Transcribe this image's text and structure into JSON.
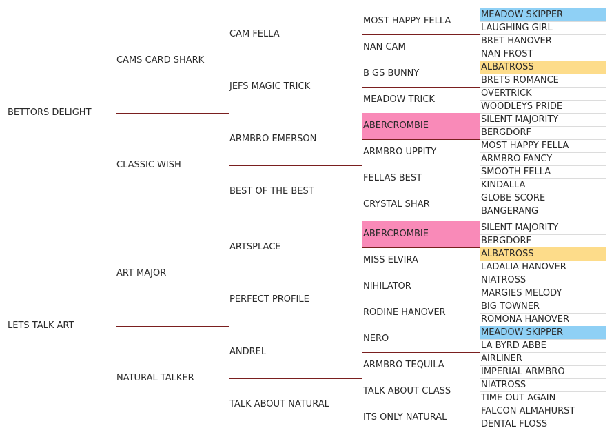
{
  "colors": {
    "line": "#7a1f1f",
    "grid": "#dcdcdc",
    "blue": "#8fd0f5",
    "pink": "#f98ab8",
    "orange": "#fddc8a"
  },
  "halves": [
    {
      "sire": "BETTORS DELIGHT",
      "g2": [
        "CAMS CARD SHARK",
        "CLASSIC WISH"
      ],
      "g3": [
        "CAM FELLA",
        "JEFS MAGIC TRICK",
        "ARMBRO EMERSON",
        "BEST OF THE BEST"
      ],
      "g4": [
        {
          "name": "MOST HAPPY FELLA",
          "color": ""
        },
        {
          "name": "NAN CAM",
          "color": ""
        },
        {
          "name": "B GS BUNNY",
          "color": ""
        },
        {
          "name": "MEADOW TRICK",
          "color": ""
        },
        {
          "name": "ABERCROMBIE",
          "color": "pink"
        },
        {
          "name": "ARMBRO UPPITY",
          "color": ""
        },
        {
          "name": "FELLAS BEST",
          "color": ""
        },
        {
          "name": "CRYSTAL SHAR",
          "color": ""
        }
      ],
      "g5": [
        {
          "name": "MEADOW SKIPPER",
          "color": "blue"
        },
        {
          "name": "LAUGHING GIRL",
          "color": ""
        },
        {
          "name": "BRET HANOVER",
          "color": ""
        },
        {
          "name": "NAN FROST",
          "color": ""
        },
        {
          "name": "ALBATROSS",
          "color": "orange"
        },
        {
          "name": "BRETS ROMANCE",
          "color": ""
        },
        {
          "name": "OVERTRICK",
          "color": ""
        },
        {
          "name": "WOODLEYS PRIDE",
          "color": ""
        },
        {
          "name": "SILENT MAJORITY",
          "color": ""
        },
        {
          "name": "BERGDORF",
          "color": ""
        },
        {
          "name": "MOST HAPPY FELLA",
          "color": ""
        },
        {
          "name": "ARMBRO FANCY",
          "color": ""
        },
        {
          "name": "SMOOTH FELLA",
          "color": ""
        },
        {
          "name": "KINDALLA",
          "color": ""
        },
        {
          "name": "GLOBE SCORE",
          "color": ""
        },
        {
          "name": "BANGERANG",
          "color": ""
        }
      ]
    },
    {
      "sire": "LETS TALK ART",
      "g2": [
        "ART MAJOR",
        "NATURAL TALKER"
      ],
      "g3": [
        "ARTSPLACE",
        "PERFECT PROFILE",
        "ANDREL",
        "TALK ABOUT NATURAL"
      ],
      "g4": [
        {
          "name": "ABERCROMBIE",
          "color": "pink"
        },
        {
          "name": "MISS ELVIRA",
          "color": ""
        },
        {
          "name": "NIHILATOR",
          "color": ""
        },
        {
          "name": "RODINE HANOVER",
          "color": ""
        },
        {
          "name": "NERO",
          "color": ""
        },
        {
          "name": "ARMBRO TEQUILA",
          "color": ""
        },
        {
          "name": "TALK ABOUT CLASS",
          "color": ""
        },
        {
          "name": "ITS ONLY NATURAL",
          "color": ""
        }
      ],
      "g5": [
        {
          "name": "SILENT MAJORITY",
          "color": ""
        },
        {
          "name": "BERGDORF",
          "color": ""
        },
        {
          "name": "ALBATROSS",
          "color": "orange"
        },
        {
          "name": "LADALIA HANOVER",
          "color": ""
        },
        {
          "name": "NIATROSS",
          "color": ""
        },
        {
          "name": "MARGIES MELODY",
          "color": ""
        },
        {
          "name": "BIG TOWNER",
          "color": ""
        },
        {
          "name": "ROMONA HANOVER",
          "color": ""
        },
        {
          "name": "MEADOW SKIPPER",
          "color": "blue"
        },
        {
          "name": "LA BYRD ABBE",
          "color": ""
        },
        {
          "name": "AIRLINER",
          "color": ""
        },
        {
          "name": "IMPERIAL ARMBRO",
          "color": ""
        },
        {
          "name": "NIATROSS",
          "color": ""
        },
        {
          "name": "TIME OUT AGAIN",
          "color": ""
        },
        {
          "name": "FALCON ALMAHURST",
          "color": ""
        },
        {
          "name": "DENTAL FLOSS",
          "color": ""
        }
      ]
    }
  ]
}
